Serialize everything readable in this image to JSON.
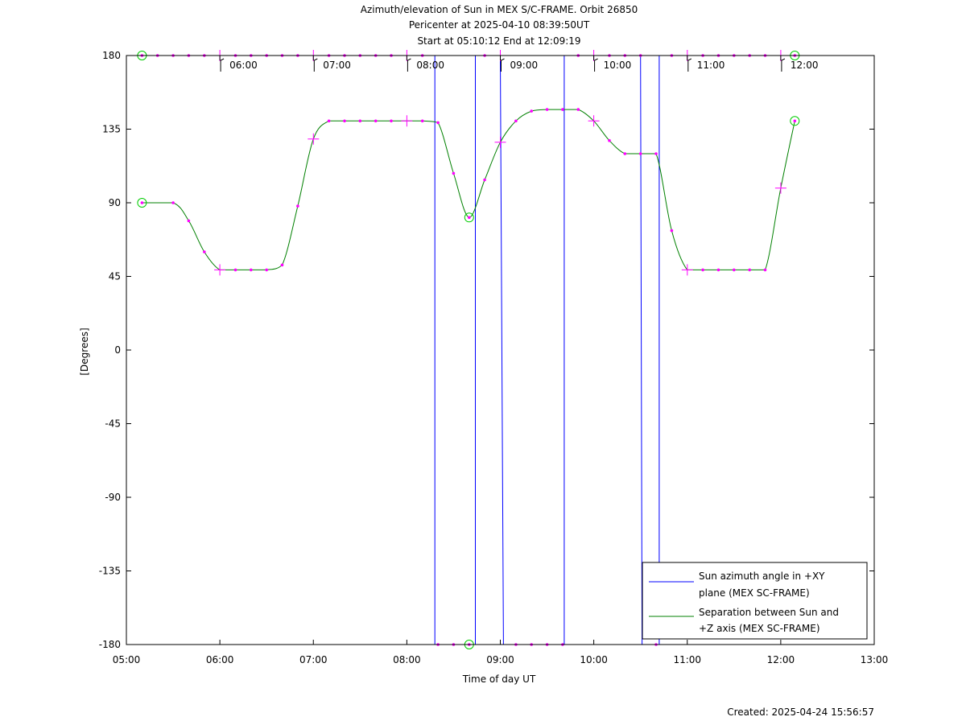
{
  "chart_data": {
    "type": "line",
    "title_lines": [
      "Azimuth/elevation of Sun in MEX S/C-FRAME.  Orbit 26850",
      "Pericenter at 2025-04-10 08:39:50UT",
      "Start at 05:10:12 End at 12:09:19"
    ],
    "xlabel": "Time of day UT",
    "ylabel": "[Degrees]",
    "xlim": [
      "05:00",
      "13:00"
    ],
    "ylim": [
      -180,
      180
    ],
    "x_ticks": [
      "05:00",
      "06:00",
      "07:00",
      "08:00",
      "09:00",
      "10:00",
      "11:00",
      "12:00",
      "13:00"
    ],
    "y_ticks": [
      180,
      135,
      90,
      45,
      0,
      -45,
      -90,
      -135,
      -180
    ],
    "hour_marker_labels": [
      "06:00",
      "07:00",
      "08:00",
      "09:00",
      "10:00",
      "11:00",
      "12:00"
    ],
    "legend_position": "bottom-right",
    "grid": false,
    "series": [
      {
        "name": "Sun azimuth angle in +XY plane (MEX SC-FRAME)",
        "legend_lines": [
          "Sun azimuth angle in +XY",
          "plane (MEX SC-FRAME)"
        ],
        "color": "#0000ff",
        "points": [
          [
            "05:10",
            180
          ],
          [
            "08:18",
            180
          ],
          [
            "08:18",
            -180
          ],
          [
            "08:44",
            -180
          ],
          [
            "08:44",
            180
          ],
          [
            "09:00",
            180
          ],
          [
            "09:02",
            -180
          ],
          [
            "09:41",
            -180
          ],
          [
            "09:41",
            180
          ],
          [
            "10:30",
            180
          ],
          [
            "10:31",
            -180
          ],
          [
            "10:42",
            -180
          ],
          [
            "10:42",
            180
          ],
          [
            "12:09",
            180
          ]
        ]
      },
      {
        "name": "Separation between Sun and +Z axis (MEX SC-FRAME)",
        "legend_lines": [
          "Separation between Sun and",
          "+Z axis (MEX SC-FRAME)"
        ],
        "color": "#008000",
        "points": [
          [
            "05:10",
            90
          ],
          [
            "05:30",
            90
          ],
          [
            "05:40",
            79
          ],
          [
            "05:50",
            60
          ],
          [
            "06:00",
            49
          ],
          [
            "06:10",
            49
          ],
          [
            "06:20",
            49
          ],
          [
            "06:30",
            49
          ],
          [
            "06:40",
            52
          ],
          [
            "06:50",
            88
          ],
          [
            "07:00",
            129
          ],
          [
            "07:10",
            140
          ],
          [
            "07:20",
            140
          ],
          [
            "07:30",
            140
          ],
          [
            "07:40",
            140
          ],
          [
            "07:50",
            140
          ],
          [
            "08:00",
            140
          ],
          [
            "08:10",
            140
          ],
          [
            "08:20",
            139
          ],
          [
            "08:30",
            108
          ],
          [
            "08:40",
            81
          ],
          [
            "08:50",
            104
          ],
          [
            "09:00",
            127
          ],
          [
            "09:10",
            140
          ],
          [
            "09:20",
            146
          ],
          [
            "09:30",
            147
          ],
          [
            "09:40",
            147
          ],
          [
            "09:50",
            147
          ],
          [
            "10:00",
            140
          ],
          [
            "10:10",
            128
          ],
          [
            "10:20",
            120
          ],
          [
            "10:30",
            120
          ],
          [
            "10:40",
            120
          ],
          [
            "10:50",
            73
          ],
          [
            "11:00",
            49
          ],
          [
            "11:10",
            49
          ],
          [
            "11:20",
            49
          ],
          [
            "11:30",
            49
          ],
          [
            "11:40",
            49
          ],
          [
            "11:50",
            49
          ],
          [
            "12:00",
            99
          ],
          [
            "12:09",
            140
          ]
        ]
      }
    ],
    "markers": {
      "color": "#ff00ff",
      "circle_color": "#00cc00",
      "azimuth_dots": [
        "05:10",
        "05:20",
        "05:30",
        "05:40",
        "05:50",
        "06:00",
        "06:10",
        "06:20",
        "06:30",
        "06:40",
        "06:50",
        "07:00",
        "07:10",
        "07:20",
        "07:30",
        "07:40",
        "07:50",
        "08:00",
        "08:10",
        "08:50",
        "09:00",
        "09:50",
        "10:00",
        "10:10",
        "10:20",
        "10:30",
        "10:50",
        "11:00",
        "11:10",
        "11:20",
        "11:30",
        "11:40",
        "11:50",
        "12:00",
        "12:09"
      ],
      "azimuth_low_dots": [
        "08:20",
        "08:30",
        "08:40",
        "09:10",
        "09:20",
        "09:30",
        "09:40",
        "10:40"
      ],
      "azimuth_circles": [
        [
          "05:10",
          180
        ],
        [
          "08:40",
          -180
        ],
        [
          "12:09",
          180
        ]
      ],
      "separation_circles": [
        [
          "05:10",
          90
        ],
        [
          "08:40",
          81
        ],
        [
          "12:09",
          140
        ]
      ]
    }
  },
  "footer": {
    "created": "Created: 2025-04-24 15:56:57"
  }
}
